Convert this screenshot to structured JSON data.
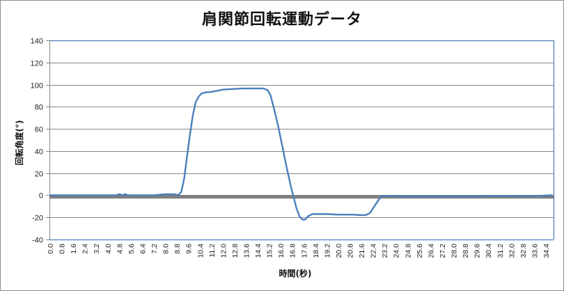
{
  "chart_data": {
    "type": "line",
    "title": "肩関節回転運動データ",
    "xlabel": "時間(秒)",
    "ylabel": "回転角度(°)",
    "ylim": [
      -40,
      140
    ],
    "yticks": [
      140,
      120,
      100,
      80,
      60,
      40,
      20,
      0,
      -20,
      -40
    ],
    "xtick_labels": [
      "0.0",
      "0.8",
      "1.6",
      "2.4",
      "3.2",
      "4.0",
      "4.8",
      "5.6",
      "6.4",
      "7.2",
      "8.0",
      "8.8",
      "9.6",
      "10.4",
      "11.2",
      "12.0",
      "12.8",
      "13.6",
      "14.4",
      "15.2",
      "16.0",
      "16.8",
      "17.6",
      "18.4",
      "19.2",
      "20.0",
      "20.8",
      "21.6",
      "22.4",
      "23.2",
      "24.0",
      "24.8",
      "25.6",
      "26.4",
      "27.2",
      "28.0",
      "28.8",
      "29.6",
      "30.4",
      "31.2",
      "32.0",
      "32.8",
      "33.6",
      "34.4"
    ],
    "xlim": [
      0.0,
      35.0
    ],
    "grid": true,
    "legend": "none",
    "series": [
      {
        "name": "回転角度",
        "color": "#4a7ebb",
        "x": [
          0.0,
          2.0,
          4.6,
          4.8,
          5.0,
          5.2,
          5.4,
          6.0,
          7.2,
          8.0,
          8.6,
          8.9,
          9.1,
          9.3,
          9.5,
          9.7,
          9.9,
          10.1,
          10.3,
          10.5,
          10.8,
          11.2,
          11.6,
          12.0,
          12.6,
          13.4,
          14.2,
          14.8,
          15.1,
          15.3,
          15.5,
          15.8,
          16.1,
          16.4,
          16.7,
          16.9,
          17.1,
          17.3,
          17.5,
          17.7,
          17.9,
          18.2,
          18.6,
          19.2,
          20.0,
          21.0,
          21.6,
          21.9,
          22.2,
          22.5,
          22.8,
          23.0,
          23.3,
          24.0,
          26.0,
          28.0,
          30.0,
          32.0,
          34.0,
          34.8
        ],
        "values": [
          0,
          0,
          0,
          1,
          0,
          1,
          0,
          0,
          0,
          1,
          1,
          0,
          3,
          15,
          35,
          55,
          72,
          84,
          89,
          92,
          93,
          93.5,
          94.5,
          95.5,
          96,
          96.5,
          96.5,
          96.5,
          95,
          90,
          80,
          64,
          45,
          26,
          8,
          -2,
          -12,
          -19,
          -22,
          -22,
          -19,
          -17,
          -17,
          -17,
          -17.5,
          -17.5,
          -18,
          -18,
          -16,
          -10,
          -4,
          -1,
          -0.5,
          -1,
          -1,
          -1,
          -1,
          -0.5,
          -0.5,
          0
        ]
      },
      {
        "name": "基準線",
        "color": "#808080",
        "x": [
          0.0,
          35.0
        ],
        "values": [
          -1.5,
          -1.5
        ]
      }
    ]
  },
  "colors": {
    "line": "#4a7ebb",
    "baseline": "#808080",
    "grid": "#878787",
    "axis": "#4a7ebb"
  }
}
